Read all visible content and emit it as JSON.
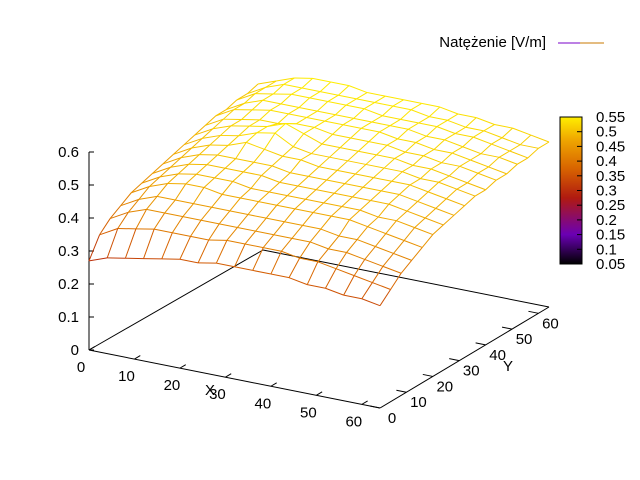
{
  "chart_data": {
    "type": "surface",
    "legend": {
      "label": "Natężenie [V/m]",
      "position": "top-right",
      "line_colors": [
        "#7a00c8",
        "#c87a00"
      ]
    },
    "x_axis": {
      "label": "X",
      "range": [
        0,
        64
      ],
      "ticks": [
        0,
        10,
        20,
        30,
        40,
        50,
        60
      ],
      "tick_labels": [
        "0",
        "10",
        "20",
        "30",
        "40",
        "50",
        "60"
      ]
    },
    "y_axis": {
      "label": "Y",
      "range": [
        0,
        64
      ],
      "ticks": [
        0,
        10,
        20,
        30,
        40,
        50,
        60
      ],
      "tick_labels": [
        "0",
        "10",
        "20",
        "30",
        "40",
        "50",
        "60"
      ]
    },
    "z_axis": {
      "range": [
        0,
        0.6
      ],
      "ticks": [
        0,
        0.1,
        0.2,
        0.3,
        0.4,
        0.5,
        0.6
      ],
      "tick_labels": [
        "0",
        "0.1",
        "0.2",
        "0.3",
        "0.4",
        "0.5",
        "0.6"
      ]
    },
    "colorbox": {
      "range": [
        0.05,
        0.55
      ],
      "ticks": [
        0.05,
        0.1,
        0.15,
        0.2,
        0.25,
        0.3,
        0.35,
        0.4,
        0.45,
        0.5,
        0.55
      ],
      "tick_labels": [
        "0.05",
        "0.1",
        "0.15",
        "0.2",
        "0.25",
        "0.3",
        "0.35",
        "0.4",
        "0.45",
        "0.5",
        "0.55"
      ],
      "palette": [
        "#000000",
        "#6a00b4",
        "#b01a10",
        "#d86400",
        "#f0a800",
        "#ffee00"
      ]
    },
    "grid": false,
    "surface": {
      "x": [
        0,
        4,
        8,
        12,
        16,
        20,
        24,
        28,
        32,
        36,
        40,
        44,
        48,
        52,
        56,
        60,
        64
      ],
      "y": [
        0,
        4,
        8,
        12,
        16,
        20,
        24,
        28,
        32,
        36,
        40,
        44,
        48,
        52,
        56,
        60,
        64
      ],
      "z": [
        [
          0.27,
          0.29,
          0.3,
          0.31,
          0.32,
          0.33,
          0.33,
          0.34,
          0.34,
          0.34,
          0.34,
          0.34,
          0.33,
          0.33,
          0.32,
          0.32,
          0.31
        ],
        [
          0.33,
          0.36,
          0.37,
          0.38,
          0.38,
          0.38,
          0.38,
          0.39,
          0.39,
          0.39,
          0.39,
          0.38,
          0.38,
          0.37,
          0.36,
          0.35,
          0.34
        ],
        [
          0.36,
          0.39,
          0.41,
          0.41,
          0.41,
          0.41,
          0.41,
          0.41,
          0.41,
          0.41,
          0.41,
          0.41,
          0.4,
          0.4,
          0.39,
          0.38,
          0.37
        ],
        [
          0.38,
          0.41,
          0.43,
          0.43,
          0.43,
          0.43,
          0.43,
          0.43,
          0.43,
          0.43,
          0.43,
          0.43,
          0.42,
          0.42,
          0.41,
          0.4,
          0.39
        ],
        [
          0.4,
          0.43,
          0.45,
          0.46,
          0.46,
          0.45,
          0.45,
          0.45,
          0.45,
          0.45,
          0.45,
          0.45,
          0.45,
          0.44,
          0.43,
          0.42,
          0.41
        ],
        [
          0.41,
          0.44,
          0.46,
          0.47,
          0.47,
          0.47,
          0.46,
          0.46,
          0.46,
          0.46,
          0.46,
          0.46,
          0.46,
          0.45,
          0.45,
          0.44,
          0.43
        ],
        [
          0.42,
          0.45,
          0.47,
          0.48,
          0.48,
          0.48,
          0.48,
          0.47,
          0.47,
          0.47,
          0.47,
          0.47,
          0.47,
          0.47,
          0.46,
          0.45,
          0.44
        ],
        [
          0.43,
          0.46,
          0.48,
          0.49,
          0.49,
          0.49,
          0.49,
          0.48,
          0.48,
          0.48,
          0.48,
          0.48,
          0.48,
          0.48,
          0.47,
          0.46,
          0.45
        ],
        [
          0.44,
          0.47,
          0.49,
          0.5,
          0.52,
          0.51,
          0.5,
          0.5,
          0.49,
          0.49,
          0.49,
          0.49,
          0.49,
          0.49,
          0.48,
          0.47,
          0.46
        ],
        [
          0.45,
          0.48,
          0.5,
          0.51,
          0.53,
          0.54,
          0.51,
          0.5,
          0.5,
          0.5,
          0.5,
          0.5,
          0.5,
          0.49,
          0.49,
          0.48,
          0.47
        ],
        [
          0.46,
          0.49,
          0.51,
          0.52,
          0.53,
          0.55,
          0.53,
          0.51,
          0.51,
          0.51,
          0.51,
          0.51,
          0.5,
          0.5,
          0.49,
          0.48,
          0.47
        ],
        [
          0.47,
          0.5,
          0.51,
          0.52,
          0.52,
          0.53,
          0.53,
          0.52,
          0.52,
          0.52,
          0.52,
          0.51,
          0.51,
          0.5,
          0.5,
          0.49,
          0.48
        ],
        [
          0.48,
          0.51,
          0.52,
          0.53,
          0.53,
          0.53,
          0.53,
          0.53,
          0.53,
          0.53,
          0.52,
          0.52,
          0.51,
          0.51,
          0.5,
          0.49,
          0.48
        ],
        [
          0.48,
          0.51,
          0.53,
          0.53,
          0.53,
          0.53,
          0.53,
          0.53,
          0.53,
          0.53,
          0.53,
          0.52,
          0.52,
          0.51,
          0.5,
          0.5,
          0.49
        ],
        [
          0.49,
          0.52,
          0.53,
          0.54,
          0.54,
          0.54,
          0.54,
          0.54,
          0.53,
          0.53,
          0.53,
          0.53,
          0.52,
          0.52,
          0.51,
          0.5,
          0.49
        ],
        [
          0.49,
          0.52,
          0.54,
          0.54,
          0.54,
          0.54,
          0.54,
          0.54,
          0.54,
          0.54,
          0.53,
          0.53,
          0.52,
          0.52,
          0.51,
          0.5,
          0.5
        ],
        [
          0.5,
          0.52,
          0.54,
          0.55,
          0.55,
          0.55,
          0.54,
          0.54,
          0.54,
          0.54,
          0.54,
          0.53,
          0.53,
          0.52,
          0.52,
          0.51,
          0.5
        ]
      ]
    }
  }
}
